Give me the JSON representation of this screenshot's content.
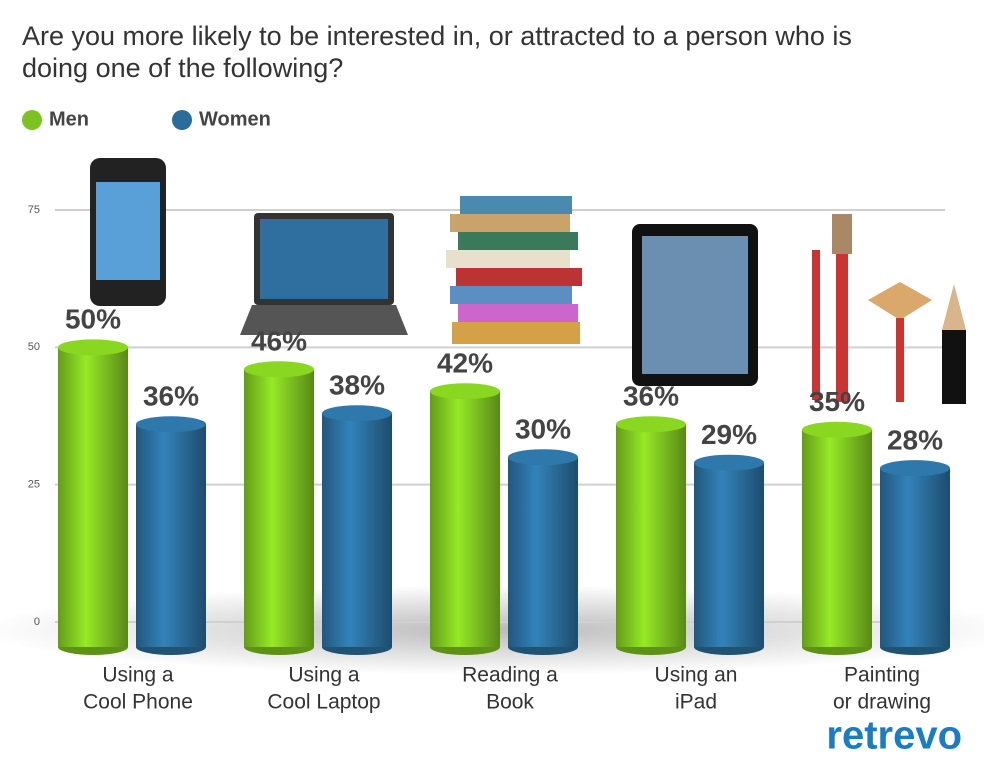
{
  "chart_data": {
    "type": "bar",
    "title": "Are you more likely to be interested in, or attracted to a person who is doing one of the following?",
    "categories": [
      [
        "Using a",
        "Cool Phone"
      ],
      [
        "Using a",
        "Cool Laptop"
      ],
      [
        "Reading a",
        "Book"
      ],
      [
        "Using an",
        "iPad"
      ],
      [
        "Painting",
        "or drawing"
      ]
    ],
    "series": [
      {
        "name": "Men",
        "color": "#7dc31f",
        "values": [
          50,
          46,
          42,
          36,
          35
        ],
        "value_labels": [
          "50%",
          "46%",
          "42%",
          "36%",
          "35%"
        ]
      },
      {
        "name": "Women",
        "color": "#2a6d9b",
        "values": [
          36,
          38,
          30,
          29,
          28
        ],
        "value_labels": [
          "36%",
          "38%",
          "30%",
          "29%",
          "28%"
        ]
      }
    ],
    "ylim": [
      0,
      75
    ],
    "yticks": [
      0,
      25,
      50,
      75
    ],
    "grid": true,
    "source": "retrevo"
  }
}
